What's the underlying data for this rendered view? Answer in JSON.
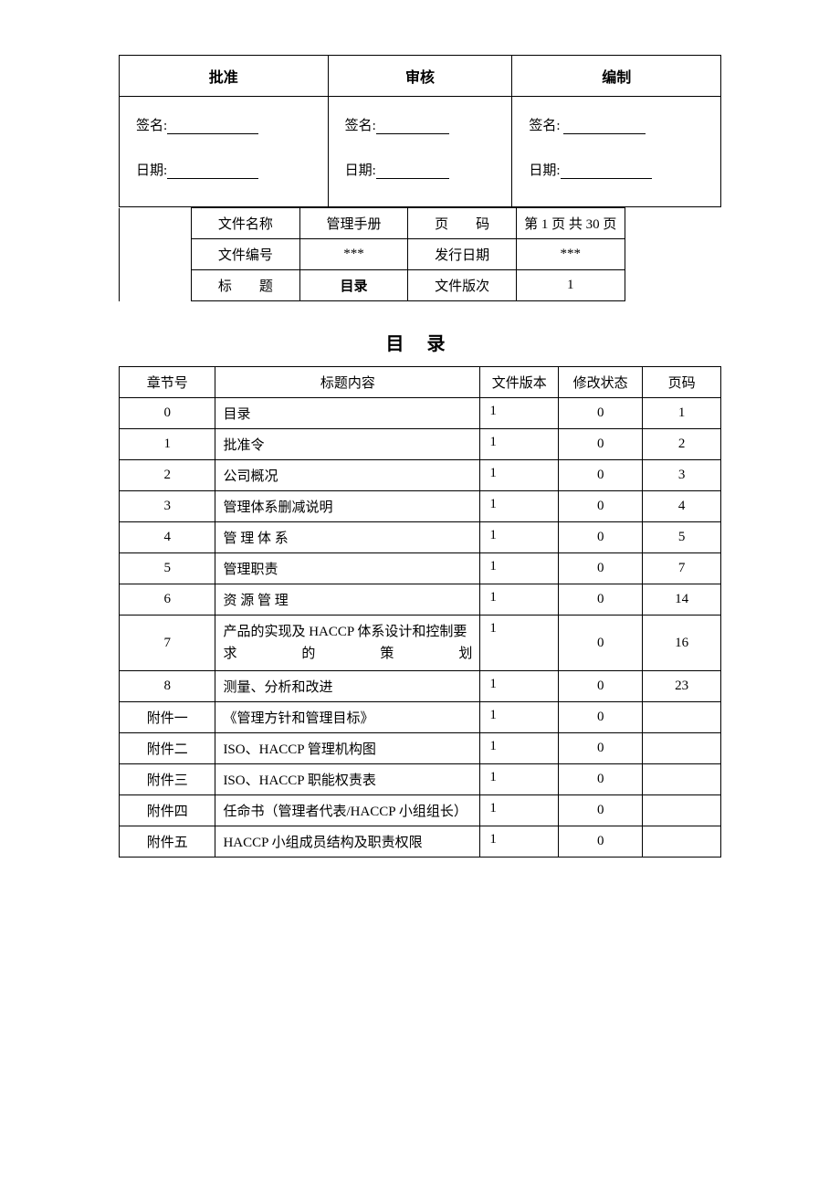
{
  "approval": {
    "cols": [
      {
        "header": "批准",
        "sig_label": "签名:",
        "date_label": "日期:",
        "sig_line_w": 100,
        "date_line_w": 100
      },
      {
        "header": "审核",
        "sig_label": "签名:",
        "date_label": "日期:",
        "sig_line_w": 80,
        "date_line_w": 80
      },
      {
        "header": "编制",
        "sig_label": "签名:",
        "date_label": "日期:",
        "sig_line_w": 90,
        "date_line_w": 100
      }
    ]
  },
  "meta": {
    "rows": [
      {
        "k": "文件名称",
        "v": "管理手册",
        "k2_pre": "页",
        "k2_post": "码",
        "v2": "第 1 页 共 30 页",
        "v_bold": false
      },
      {
        "k": "文件编号",
        "v": "***",
        "k2": "发行日期",
        "v2": "***",
        "v_bold": false
      },
      {
        "k_pre": "标",
        "k_post": "题",
        "v": "目录",
        "k2": "文件版次",
        "v2": "1",
        "v_bold": true
      }
    ]
  },
  "toc": {
    "title": "目 录",
    "headers": [
      "章节号",
      "标题内容",
      "文件版本",
      "修改状态",
      "页码"
    ],
    "rows": [
      {
        "ch": "0",
        "title": "目录",
        "ver": "1",
        "mod": "0",
        "pg": "1"
      },
      {
        "ch": "1",
        "title": "批准令",
        "ver": "1",
        "mod": "0",
        "pg": "2"
      },
      {
        "ch": "2",
        "title": "公司概况",
        "ver": "1",
        "mod": "0",
        "pg": "3"
      },
      {
        "ch": "3",
        "title": "管理体系删减说明",
        "ver": "1",
        "mod": "0",
        "pg": "4"
      },
      {
        "ch": "4",
        "title": "管 理 体 系",
        "ver": "1",
        "mod": "0",
        "pg": "5"
      },
      {
        "ch": "5",
        "title": "管理职责",
        "ver": "1",
        "mod": "0",
        "pg": "7"
      },
      {
        "ch": "6",
        "title": "资 源 管 理",
        "ver": "1",
        "mod": "0",
        "pg": "14"
      },
      {
        "ch": "7",
        "title": "产品的实现及 HACCP 体系设计和控制要求的策划",
        "ver": "1",
        "mod": "0",
        "pg": "16",
        "justify": true
      },
      {
        "ch": "8",
        "title": "测量、分析和改进",
        "ver": "1",
        "mod": "0",
        "pg": "23"
      },
      {
        "ch": "附件一",
        "title": "《管理方针和管理目标》",
        "ver": "1",
        "mod": "0",
        "pg": ""
      },
      {
        "ch": "附件二",
        "title": "ISO、HACCP 管理机构图",
        "ver": "1",
        "mod": "0",
        "pg": ""
      },
      {
        "ch": "附件三",
        "title": "ISO、HACCP 职能权责表",
        "ver": "1",
        "mod": "0",
        "pg": ""
      },
      {
        "ch": "附件四",
        "title": "任命书（管理者代表/HACCP 小组组长）",
        "ver": "1",
        "mod": "0",
        "pg": ""
      },
      {
        "ch": "附件五",
        "title": "HACCP 小组成员结构及职责权限",
        "ver": "1",
        "mod": "0",
        "pg": ""
      }
    ],
    "col_widths": [
      "16%",
      "44%",
      "13%",
      "14%",
      "13%"
    ]
  },
  "style": {
    "border_color": "#000000",
    "bg_color": "#ffffff",
    "text_color": "#000000",
    "body_fontsize": 15,
    "title_fontsize": 20
  }
}
